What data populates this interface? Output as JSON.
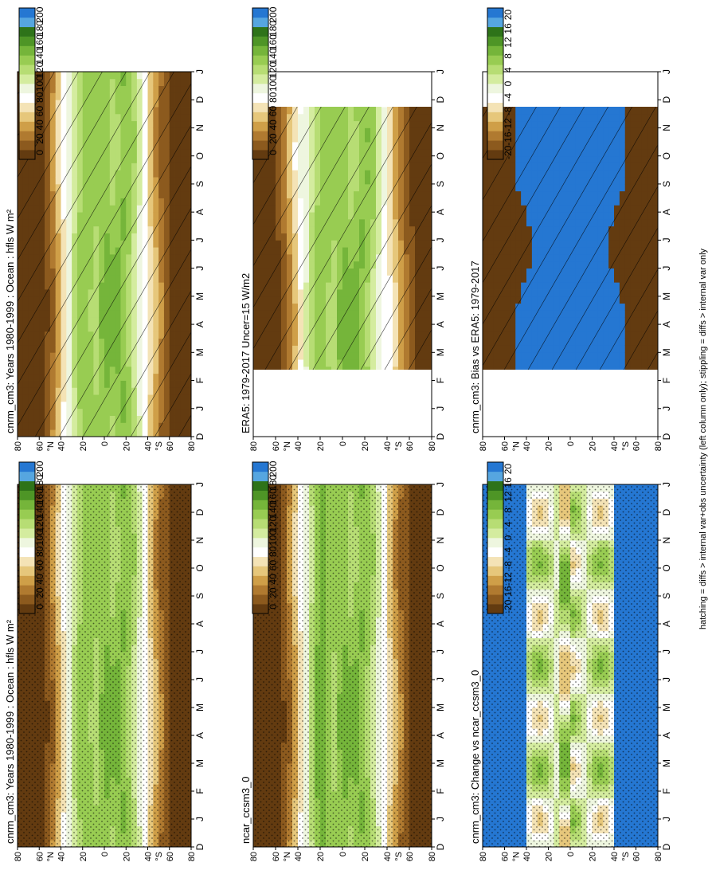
{
  "figure": {
    "footnote": "hatching = diffs > internal var+obs uncertainty (left column only); stippling = diffs > internal var only"
  },
  "palettes": {
    "absolute": [
      "#633b10",
      "#8c5a1e",
      "#b07a30",
      "#cf9f48",
      "#e6c77b",
      "#f4e3b6",
      "#ffffff",
      "#eef6df",
      "#d4ec9f",
      "#b7dd74",
      "#98cc52",
      "#75b53a",
      "#4e9526",
      "#2e7319",
      "#56a6e0",
      "#2577d2"
    ],
    "difference": [
      "#633b10",
      "#8c5a1e",
      "#b07a30",
      "#cf9f48",
      "#e6c77b",
      "#f4e3b6",
      "#ffffff",
      "#eef6df",
      "#d4ec9f",
      "#b7dd74",
      "#98cc52",
      "#75b53a",
      "#4e9526",
      "#2e7319",
      "#56a6e0",
      "#2577d2"
    ]
  },
  "colorbars": {
    "absolute_ticks": [
      "200",
      "180",
      "160",
      "140",
      "120",
      "100",
      "80",
      "60",
      "40",
      "20",
      "0"
    ],
    "difference_ticks": [
      "20",
      "16",
      "12",
      "8",
      "4",
      "0",
      "-4",
      "-8",
      "-12",
      "-16",
      "-20"
    ]
  },
  "axes": {
    "months": [
      "D",
      "J",
      "F",
      "M",
      "A",
      "M",
      "J",
      "J",
      "A",
      "S",
      "O",
      "N",
      "D",
      "J"
    ],
    "lat_ticks": [
      "80",
      "60",
      "40",
      "20",
      "0",
      "20",
      "40",
      "60",
      "80"
    ],
    "lat_labels": [
      "°N",
      "°S"
    ]
  },
  "chart_data": [
    {
      "type": "heatmap",
      "title": "cnrm_cm3: Years 1980-1999 : Ocean : hfls W m²",
      "x": [
        "D",
        "J",
        "F",
        "M",
        "A",
        "M",
        "J",
        "J",
        "A",
        "S",
        "O",
        "N",
        "D",
        "J"
      ],
      "y": [
        "80°S",
        "60°S",
        "40°S",
        "20°S",
        "0",
        "20°N",
        "40°N",
        "60°N",
        "80°N"
      ],
      "zlim": [
        0,
        200
      ],
      "overlay": "hatching",
      "colorbar_ticks": [
        "200",
        "180",
        "160",
        "140",
        "120",
        "100",
        "80",
        "60",
        "40",
        "20",
        "0"
      ]
    },
    {
      "type": "heatmap",
      "title": "cnrm_cm3: Years 1980-1999 : Ocean : hfls W m²",
      "x": [
        "D",
        "J",
        "F",
        "M",
        "A",
        "M",
        "J",
        "J",
        "A",
        "S",
        "O",
        "N",
        "D",
        "J"
      ],
      "y": [
        "80°S",
        "60°S",
        "40°S",
        "20°S",
        "0",
        "20°N",
        "40°N",
        "60°N",
        "80°N"
      ],
      "zlim": [
        0,
        200
      ],
      "overlay": "stippling",
      "colorbar_ticks": [
        "200",
        "180",
        "160",
        "140",
        "120",
        "100",
        "80",
        "60",
        "40",
        "20",
        "0"
      ]
    },
    {
      "type": "heatmap",
      "title": "ERA5: 1979-2017 Uncer=15 W/m2",
      "x": [
        "D",
        "J",
        "F",
        "M",
        "A",
        "M",
        "J",
        "J",
        "A",
        "S",
        "O",
        "N",
        "D",
        "J"
      ],
      "y": [
        "80°S",
        "60°S",
        "40°S",
        "20°S",
        "0",
        "20°N",
        "40°N",
        "60°N",
        "80°N"
      ],
      "zlim": [
        0,
        200
      ],
      "overlay": "hatching",
      "colorbar_ticks": [
        "200",
        "180",
        "160",
        "140",
        "120",
        "100",
        "80",
        "60",
        "40",
        "20",
        "0"
      ]
    },
    {
      "type": "heatmap",
      "title": "ncar_ccsm3_0",
      "x": [
        "D",
        "J",
        "F",
        "M",
        "A",
        "M",
        "J",
        "J",
        "A",
        "S",
        "O",
        "N",
        "D",
        "J"
      ],
      "y": [
        "80°S",
        "60°S",
        "40°S",
        "20°S",
        "0",
        "20°N",
        "40°N",
        "60°N",
        "80°N"
      ],
      "zlim": [
        0,
        200
      ],
      "overlay": "stippling",
      "colorbar_ticks": [
        "200",
        "180",
        "160",
        "140",
        "120",
        "100",
        "80",
        "60",
        "40",
        "20",
        "0"
      ]
    },
    {
      "type": "heatmap",
      "title": "cnrm_cm3: Bias vs ERA5: 1979-2017",
      "x": [
        "D",
        "J",
        "F",
        "M",
        "A",
        "M",
        "J",
        "J",
        "A",
        "S",
        "O",
        "N",
        "D",
        "J"
      ],
      "y": [
        "80°S",
        "60°S",
        "40°S",
        "20°S",
        "0",
        "20°N",
        "40°N",
        "60°N",
        "80°N"
      ],
      "zlim": [
        -20,
        20
      ],
      "overlay": "hatching",
      "colorbar_ticks": [
        "20",
        "16",
        "12",
        "8",
        "4",
        "0",
        "-4",
        "-8",
        "-12",
        "-16",
        "-20"
      ]
    },
    {
      "type": "heatmap",
      "title": "cnrm_cm3: Change vs ncar_ccsm3_0",
      "x": [
        "D",
        "J",
        "F",
        "M",
        "A",
        "M",
        "J",
        "J",
        "A",
        "S",
        "O",
        "N",
        "D",
        "J"
      ],
      "y": [
        "80°S",
        "60°S",
        "40°S",
        "20°S",
        "0",
        "20°N",
        "40°N",
        "60°N",
        "80°N"
      ],
      "zlim": [
        -20,
        20
      ],
      "overlay": "stippling",
      "colorbar_ticks": [
        "20",
        "16",
        "12",
        "8",
        "4",
        "0",
        "-4",
        "-8",
        "-12",
        "-16",
        "-20"
      ]
    }
  ]
}
